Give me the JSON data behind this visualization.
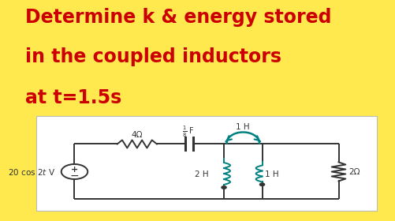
{
  "bg_color": "#FFE94E",
  "circuit_bg": "#FFFFFF",
  "title_lines": [
    "Determine k & energy stored",
    "in the coupled inductors",
    "at t=1.5s"
  ],
  "title_color": "#CC0000",
  "title_fontsize": 17,
  "circuit_color": "#333333",
  "teal_color": "#008080",
  "vs_label": "20 cos 2t V",
  "R1_label": "4Ω",
  "C_label": "¹⁄₈ F",
  "L1_label": "2 H",
  "L2_label": "1 H",
  "Larc_label": "1 H",
  "R2_label": "2Ω"
}
